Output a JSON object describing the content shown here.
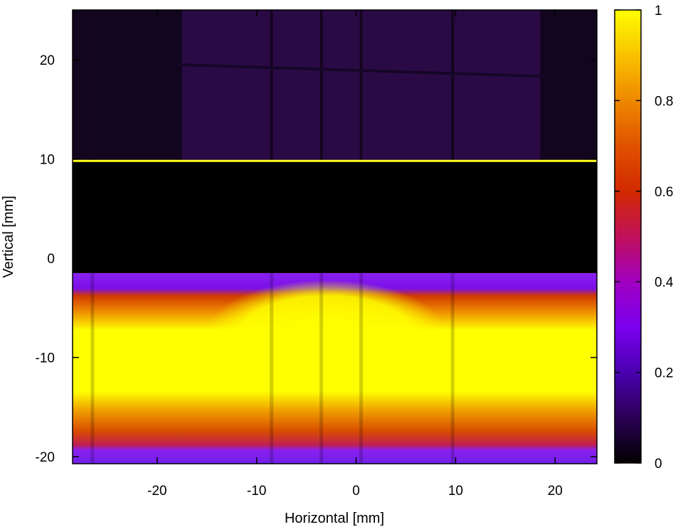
{
  "chart_data": {
    "type": "heatmap",
    "xlabel": "Horizontal [mm]",
    "ylabel": "Vertical [mm]",
    "xlim": [
      -28.5,
      24.2
    ],
    "ylim": [
      -20.7,
      25.0
    ],
    "x_ticks": [
      -20,
      -10,
      0,
      10,
      20
    ],
    "x_tick_labels": [
      "-20",
      "-10",
      "0",
      "10",
      "20"
    ],
    "y_ticks": [
      -20,
      -10,
      0,
      10,
      20
    ],
    "y_tick_labels": [
      "-20",
      "-10",
      "0",
      "10",
      "20"
    ],
    "colorbar": {
      "range": [
        0,
        1
      ],
      "ticks": [
        0,
        0.2,
        0.4,
        0.6,
        0.8,
        1
      ],
      "tick_labels": [
        "0",
        "0.2",
        "0.4",
        "0.6",
        "0.8",
        "1"
      ],
      "colormap": "gnuplot"
    },
    "grid": false,
    "legend": "none",
    "regions": [
      {
        "name": "upper-dim-region",
        "y_range": [
          9.8,
          25.0
        ],
        "intensity": 0.08
      },
      {
        "name": "bright-line",
        "y": 9.8,
        "intensity": 1.0
      },
      {
        "name": "dark-gap",
        "y_range": [
          -1.5,
          9.8
        ],
        "intensity": 0.0
      },
      {
        "name": "beam-core",
        "y_range": [
          -20.7,
          -1.5
        ],
        "peak_intensity": 1.0,
        "center_y": -9.5
      }
    ],
    "features": {
      "vertical_wires_x": [
        -26.5,
        -8.5,
        -3.5,
        0.5,
        9.7
      ],
      "horizontal_wire_y": 19.5
    }
  }
}
